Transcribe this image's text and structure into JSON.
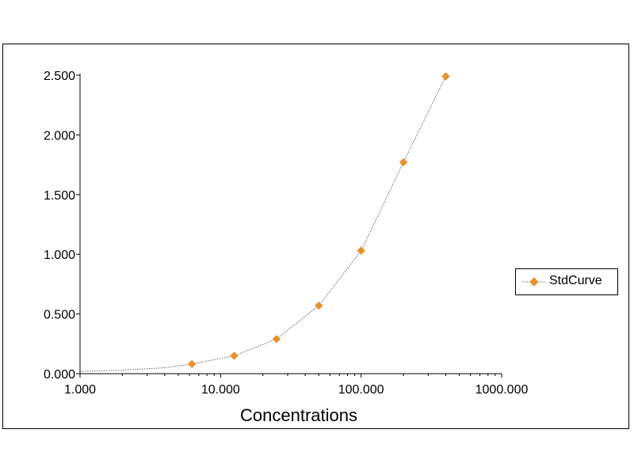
{
  "chart_data": {
    "type": "scatter",
    "xscale": "log",
    "xlim": [
      1,
      1000
    ],
    "ylim": [
      0,
      2.5
    ],
    "xlabel": "Concentrations",
    "ylabel": "",
    "x_ticks": [
      "1.000",
      "10.000",
      "100.000",
      "1000.000"
    ],
    "y_ticks": [
      "0.000",
      "0.500",
      "1.000",
      "1.500",
      "2.000",
      "2.500"
    ],
    "grid": false,
    "legend": "right",
    "series": [
      {
        "name": "StdCurve",
        "color": "#e8922e",
        "marker": "diamond",
        "x": [
          6.25,
          12.5,
          25,
          50,
          100,
          200,
          400
        ],
        "y": [
          0.08,
          0.15,
          0.29,
          0.57,
          1.03,
          1.77,
          2.49
        ]
      }
    ],
    "fit_curve": {
      "style": "dotted",
      "color": "#666666",
      "x": [
        1,
        2,
        4,
        6.25,
        12.5,
        25,
        50,
        100,
        200,
        400
      ],
      "y": [
        0.02,
        0.03,
        0.05,
        0.08,
        0.15,
        0.29,
        0.57,
        1.03,
        1.77,
        2.49
      ]
    }
  }
}
